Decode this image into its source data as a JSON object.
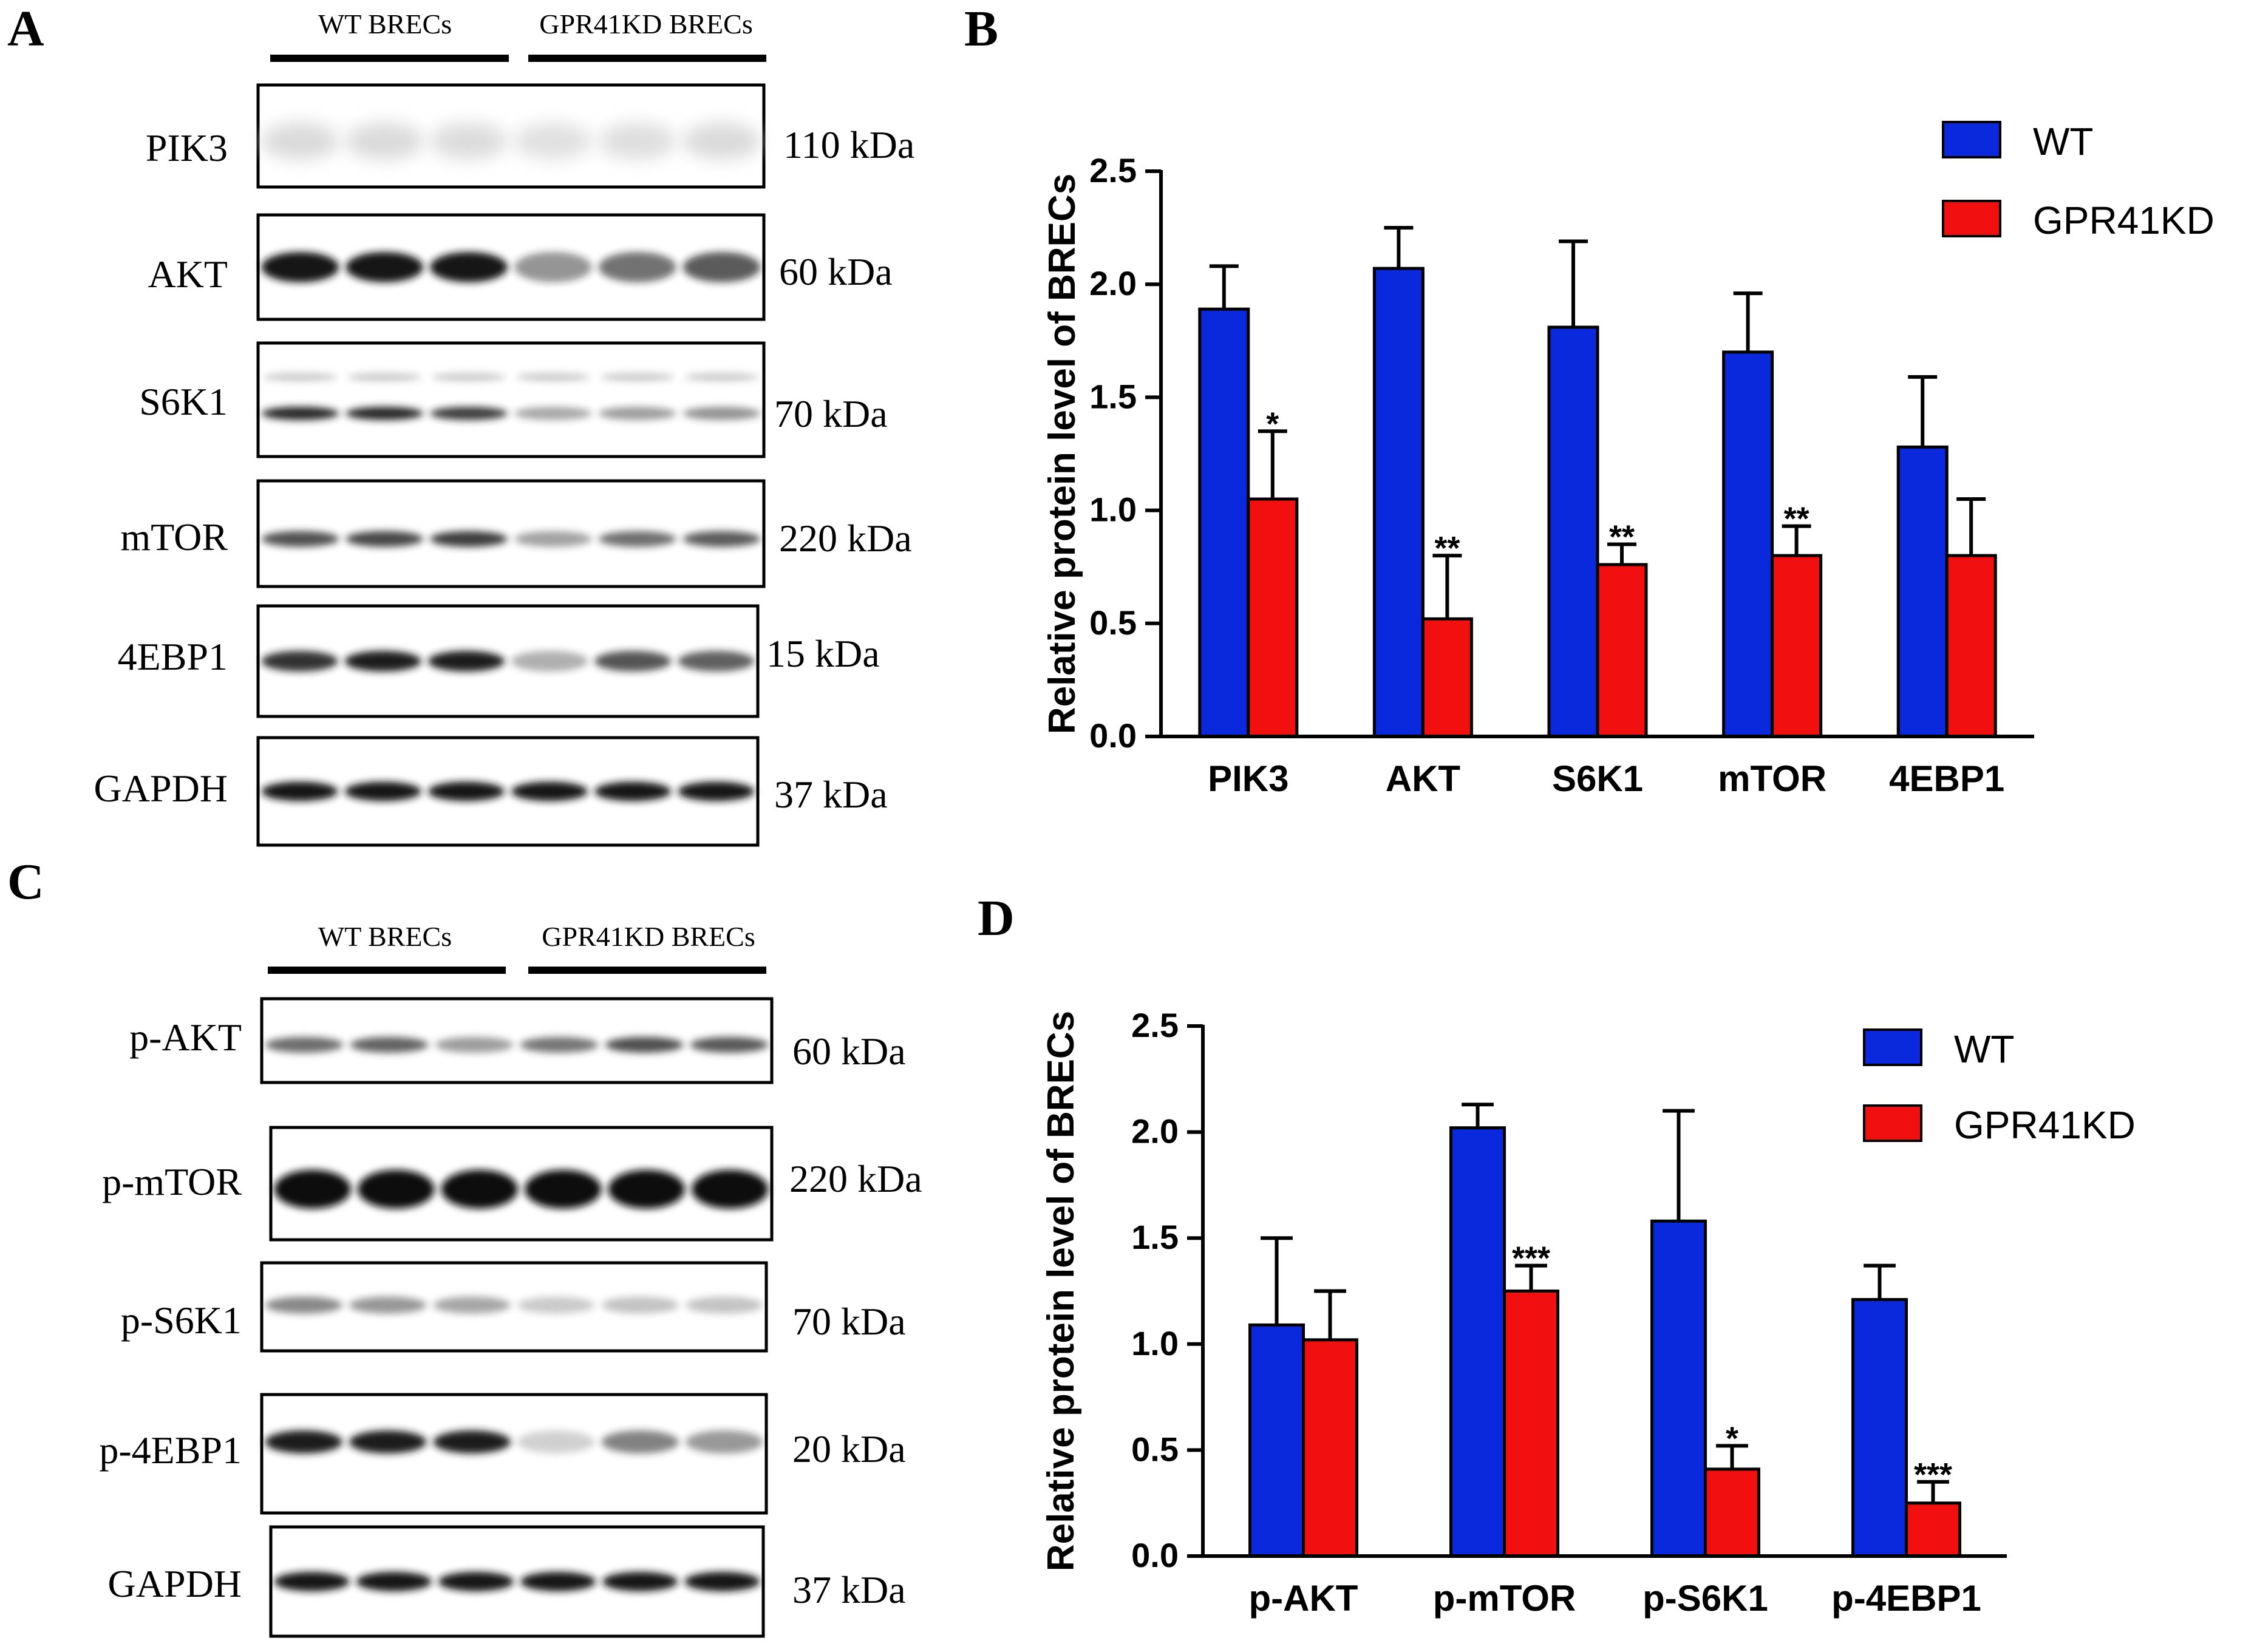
{
  "colors": {
    "wt": "#0a28dc",
    "kd": "#f20f0f",
    "axis": "#000000"
  },
  "panels": {
    "A": {
      "letter": "A",
      "group_wt": "WT BRECs",
      "group_kd": "GPR41KD BRECs",
      "blots": [
        {
          "label": "PIK3",
          "kda": "110 kDa"
        },
        {
          "label": "AKT",
          "kda": "60 kDa"
        },
        {
          "label": "S6K1",
          "kda": "70 kDa"
        },
        {
          "label": "mTOR",
          "kda": "220 kDa"
        },
        {
          "label": "4EBP1",
          "kda": "15 kDa"
        },
        {
          "label": "GAPDH",
          "kda": "37 kDa"
        }
      ]
    },
    "C": {
      "letter": "C",
      "group_wt": "WT BRECs",
      "group_kd": "GPR41KD BRECs",
      "blots": [
        {
          "label": "p-AKT",
          "kda": "60 kDa"
        },
        {
          "label": "p-mTOR",
          "kda": "220 kDa"
        },
        {
          "label": "p-S6K1",
          "kda": "70 kDa"
        },
        {
          "label": "p-4EBP1",
          "kda": "20 kDa"
        },
        {
          "label": "GAPDH",
          "kda": "37 kDa"
        }
      ]
    },
    "B": {
      "letter": "B"
    },
    "D": {
      "letter": "D"
    }
  },
  "chart_data": [
    {
      "panel": "B",
      "type": "bar",
      "ylabel": "Relative protein level of BRECs",
      "ylim": [
        0,
        2.5
      ],
      "yticks": [
        "0.0",
        "0.5",
        "1.0",
        "1.5",
        "2.0",
        "2.5"
      ],
      "categories": [
        "PIK3",
        "AKT",
        "S6K1",
        "mTOR",
        "4EBP1"
      ],
      "legend_position": "top-right",
      "series": [
        {
          "name": "WT",
          "values": [
            1.89,
            2.07,
            1.81,
            1.7,
            1.28
          ],
          "errors": [
            0.19,
            0.18,
            0.38,
            0.26,
            0.31
          ],
          "sig": [
            "",
            "",
            "",
            "",
            ""
          ]
        },
        {
          "name": "GPR41KD",
          "values": [
            1.05,
            0.52,
            0.76,
            0.8,
            0.8
          ],
          "errors": [
            0.3,
            0.28,
            0.09,
            0.13,
            0.25
          ],
          "sig": [
            "*",
            "**",
            "**",
            "**",
            ""
          ]
        }
      ]
    },
    {
      "panel": "D",
      "type": "bar",
      "ylabel": "Relative protein level of BRECs",
      "ylim": [
        0,
        2.5
      ],
      "yticks": [
        "0.0",
        "0.5",
        "1.0",
        "1.5",
        "2.0",
        "2.5"
      ],
      "categories": [
        "p-AKT",
        "p-mTOR",
        "p-S6K1",
        "p-4EBP1"
      ],
      "legend_position": "top-right",
      "series": [
        {
          "name": "WT",
          "values": [
            1.09,
            2.02,
            1.58,
            1.21
          ],
          "errors": [
            0.41,
            0.11,
            0.52,
            0.16
          ],
          "sig": [
            "",
            "",
            "",
            ""
          ]
        },
        {
          "name": "GPR41KD",
          "values": [
            1.02,
            1.25,
            0.41,
            0.25
          ],
          "errors": [
            0.23,
            0.12,
            0.11,
            0.1
          ],
          "sig": [
            "",
            "***",
            "*",
            "***"
          ]
        }
      ]
    }
  ]
}
